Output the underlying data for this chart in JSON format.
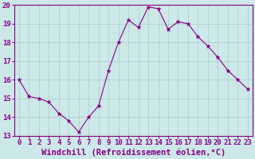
{
  "x": [
    0,
    1,
    2,
    3,
    4,
    5,
    6,
    7,
    8,
    9,
    10,
    11,
    12,
    13,
    14,
    15,
    16,
    17,
    18,
    19,
    20,
    21,
    22,
    23
  ],
  "y": [
    16.0,
    15.1,
    15.0,
    14.8,
    14.2,
    13.8,
    13.2,
    14.0,
    14.6,
    16.5,
    18.0,
    19.2,
    18.8,
    19.9,
    19.8,
    18.7,
    19.1,
    19.0,
    18.3,
    17.8,
    17.2,
    16.5,
    16.0,
    15.5
  ],
  "line_color": "#880088",
  "marker": "*",
  "marker_size": 3.5,
  "bg_color": "#cce8e8",
  "grid_color": "#aacccc",
  "xlabel": "Windchill (Refroidissement éolien,°C)",
  "xlabel_fontsize": 7.5,
  "tick_fontsize": 6.5,
  "ylim": [
    13,
    20
  ],
  "xlim": [
    -0.5,
    23.5
  ],
  "yticks": [
    13,
    14,
    15,
    16,
    17,
    18,
    19,
    20
  ],
  "xticks": [
    0,
    1,
    2,
    3,
    4,
    5,
    6,
    7,
    8,
    9,
    10,
    11,
    12,
    13,
    14,
    15,
    16,
    17,
    18,
    19,
    20,
    21,
    22,
    23
  ]
}
